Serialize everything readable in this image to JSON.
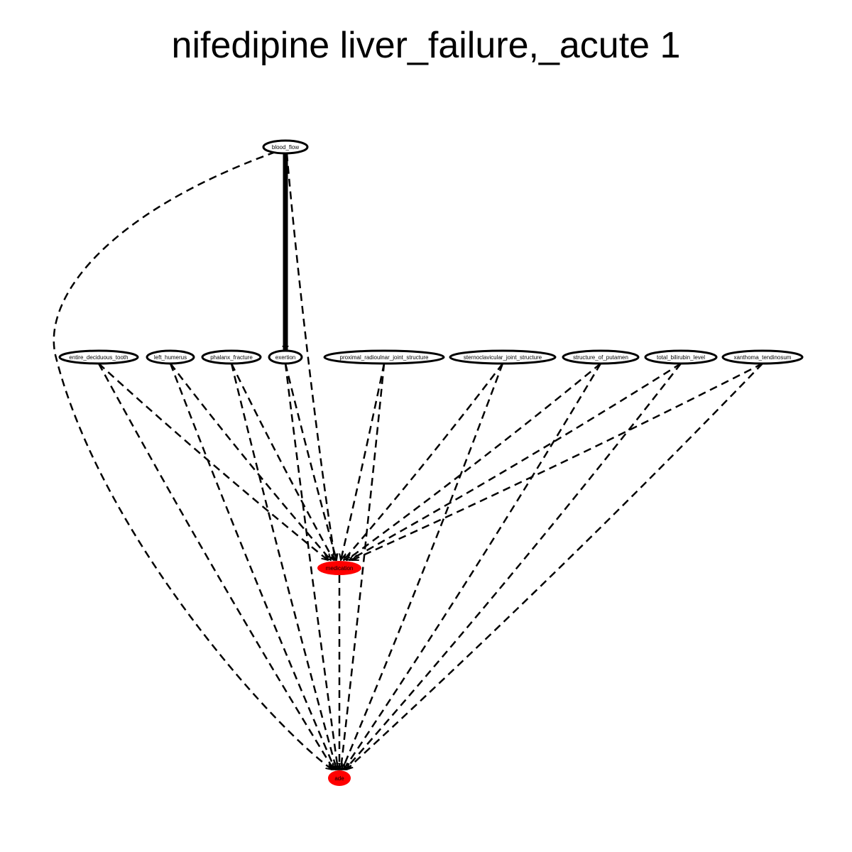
{
  "title": "nifedipine liver_failure,_acute 1",
  "colors": {
    "outcome_fill": "#ff0000",
    "edge": "#000000",
    "node_stroke": "#000000"
  },
  "nodes": [
    {
      "id": "blood_flow",
      "label": "blood_flow",
      "highlight": false
    },
    {
      "id": "entire_deciduous_tooth",
      "label": "entire_deciduous_tooth",
      "highlight": false
    },
    {
      "id": "left_humerus",
      "label": "left_humerus",
      "highlight": false
    },
    {
      "id": "phalanx_fracture",
      "label": "phalanx_fracture",
      "highlight": false
    },
    {
      "id": "exertion",
      "label": "exertion",
      "highlight": false
    },
    {
      "id": "proximal_radioulnar_joint_structure",
      "label": "proximal_radioulnar_joint_structure",
      "highlight": false
    },
    {
      "id": "sternoclavicular_joint_structure",
      "label": "sternoclavicular_joint_structure",
      "highlight": false
    },
    {
      "id": "structure_of_putamen",
      "label": "structure_of_putamen",
      "highlight": false
    },
    {
      "id": "total_bilirubin_level",
      "label": "total_bilirubin_level",
      "highlight": false
    },
    {
      "id": "xanthoma_tendinosum",
      "label": "xanthoma_tendinosum",
      "highlight": false
    },
    {
      "id": "medication",
      "label": "medication",
      "highlight": true
    },
    {
      "id": "ade",
      "label": "ade",
      "highlight": true
    }
  ],
  "edges": [
    {
      "from": "blood_flow",
      "to": "exertion",
      "style": "solid"
    },
    {
      "from": "blood_flow",
      "to": "medication",
      "style": "dashed"
    },
    {
      "from": "blood_flow",
      "to": "ade",
      "style": "dashed"
    },
    {
      "from": "entire_deciduous_tooth",
      "to": "medication",
      "style": "dashed"
    },
    {
      "from": "entire_deciduous_tooth",
      "to": "ade",
      "style": "dashed"
    },
    {
      "from": "left_humerus",
      "to": "medication",
      "style": "dashed"
    },
    {
      "from": "left_humerus",
      "to": "ade",
      "style": "dashed"
    },
    {
      "from": "phalanx_fracture",
      "to": "medication",
      "style": "dashed"
    },
    {
      "from": "phalanx_fracture",
      "to": "ade",
      "style": "dashed"
    },
    {
      "from": "exertion",
      "to": "medication",
      "style": "dashed"
    },
    {
      "from": "exertion",
      "to": "ade",
      "style": "dashed"
    },
    {
      "from": "proximal_radioulnar_joint_structure",
      "to": "medication",
      "style": "dashed"
    },
    {
      "from": "proximal_radioulnar_joint_structure",
      "to": "ade",
      "style": "dashed"
    },
    {
      "from": "sternoclavicular_joint_structure",
      "to": "medication",
      "style": "dashed"
    },
    {
      "from": "sternoclavicular_joint_structure",
      "to": "ade",
      "style": "dashed"
    },
    {
      "from": "structure_of_putamen",
      "to": "medication",
      "style": "dashed"
    },
    {
      "from": "structure_of_putamen",
      "to": "ade",
      "style": "dashed"
    },
    {
      "from": "total_bilirubin_level",
      "to": "medication",
      "style": "dashed"
    },
    {
      "from": "total_bilirubin_level",
      "to": "ade",
      "style": "dashed"
    },
    {
      "from": "xanthoma_tendinosum",
      "to": "medication",
      "style": "dashed"
    },
    {
      "from": "xanthoma_tendinosum",
      "to": "ade",
      "style": "dashed"
    },
    {
      "from": "medication",
      "to": "ade",
      "style": "dashed"
    }
  ]
}
